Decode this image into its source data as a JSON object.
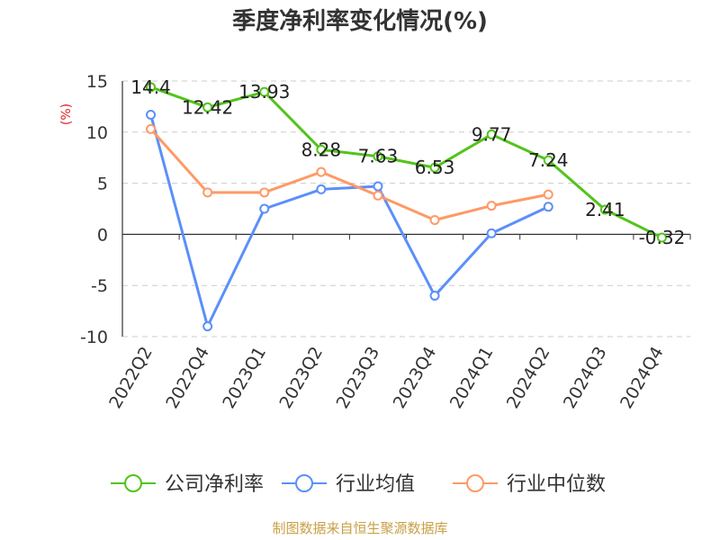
{
  "chart_data": {
    "type": "line",
    "title": "季度净利率变化情况(%)",
    "ylabel": "(%)",
    "xlabel": "",
    "ylim": [
      -10,
      15
    ],
    "yticks": [
      15,
      10,
      5,
      0,
      -5,
      -10
    ],
    "grid": true,
    "legend_position": "bottom",
    "categories": [
      "2022Q2",
      "2022Q4",
      "2023Q1",
      "2023Q2",
      "2023Q3",
      "2023Q4",
      "2024Q1",
      "2024Q2",
      "2024Q3",
      "2024Q4"
    ],
    "series": [
      {
        "name": "公司净利率",
        "color": "#52c41a",
        "values": [
          14.4,
          12.42,
          13.93,
          8.28,
          7.63,
          6.53,
          9.77,
          7.24,
          2.41,
          -0.32
        ],
        "labels": [
          "14.4",
          "12.42",
          "13.93",
          "8.28",
          "7.63",
          "6.53",
          "9.77",
          "7.24",
          "2.41",
          "-0.32"
        ]
      },
      {
        "name": "行业均值",
        "color": "#5b8ff9",
        "values": [
          11.7,
          -9.0,
          2.5,
          4.4,
          4.7,
          -6.0,
          0.1,
          2.7,
          null,
          null
        ]
      },
      {
        "name": "行业中位数",
        "color": "#ff9966",
        "values": [
          10.3,
          4.1,
          4.1,
          6.1,
          3.8,
          1.4,
          2.8,
          3.9,
          null,
          null
        ]
      }
    ]
  },
  "source": {
    "text": "制图数据来自恒生聚源数据库",
    "color": "#c8a046"
  },
  "ylabel_color": "#e02020"
}
